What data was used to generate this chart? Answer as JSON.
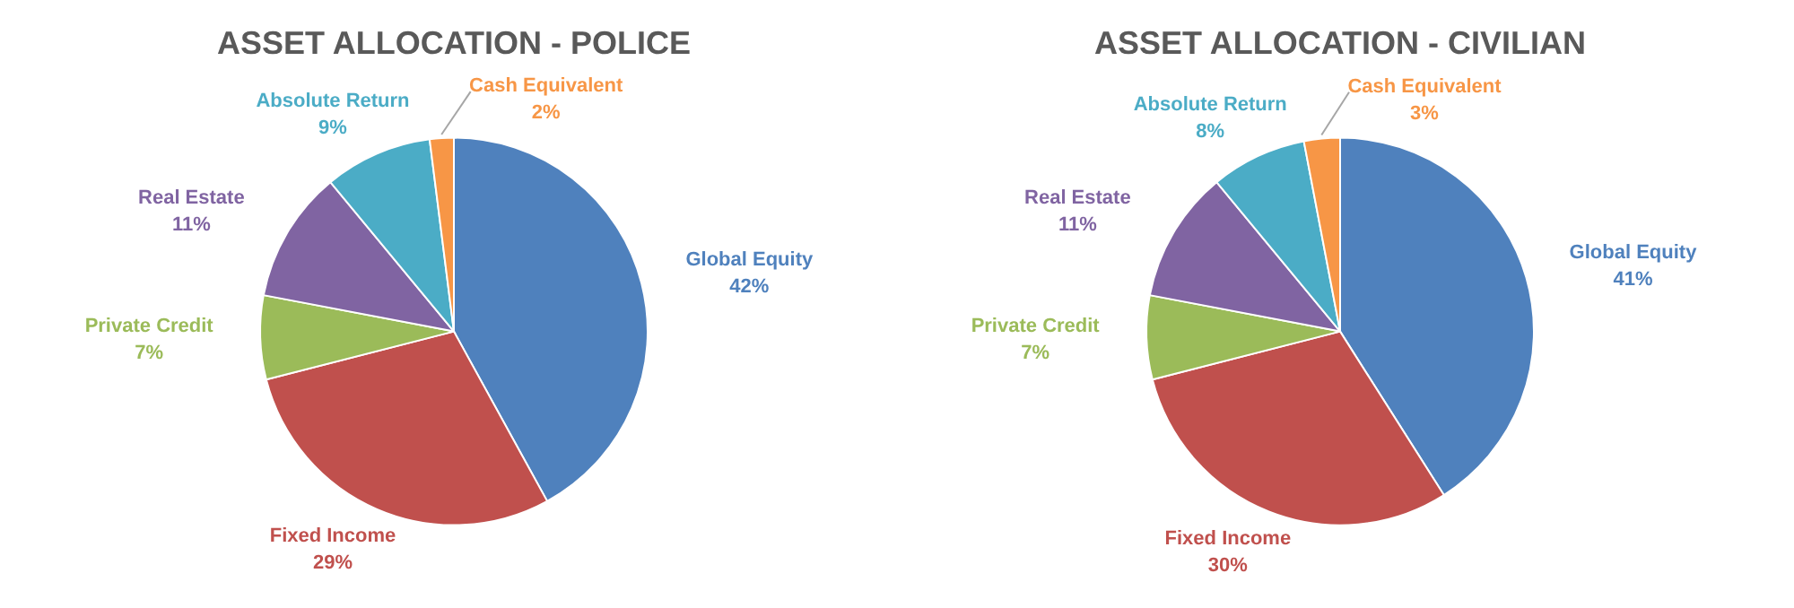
{
  "chart_data": [
    {
      "type": "pie",
      "title": "ASSET ALLOCATION - POLICE",
      "categories": [
        "Global Equity",
        "Fixed Income",
        "Private Credit",
        "Real Estate",
        "Absolute Return",
        "Cash Equivalent"
      ],
      "values": [
        42,
        29,
        7,
        11,
        9,
        2
      ],
      "value_labels": [
        "42%",
        "29%",
        "7%",
        "11%",
        "9%",
        "2%"
      ],
      "colors": [
        "#4f81bd",
        "#c0504d",
        "#9bbb59",
        "#8064a2",
        "#4bacc6",
        "#f79646"
      ],
      "legend": false
    },
    {
      "type": "pie",
      "title": "ASSET ALLOCATION - CIVILIAN",
      "categories": [
        "Global Equity",
        "Fixed Income",
        "Private Credit",
        "Real Estate",
        "Absolute Return",
        "Cash Equivalent"
      ],
      "values": [
        41,
        30,
        7,
        11,
        8,
        3
      ],
      "value_labels": [
        "41%",
        "30%",
        "7%",
        "11%",
        "8%",
        "3%"
      ],
      "colors": [
        "#4f81bd",
        "#c0504d",
        "#9bbb59",
        "#8064a2",
        "#4bacc6",
        "#f79646"
      ],
      "legend": false
    }
  ]
}
